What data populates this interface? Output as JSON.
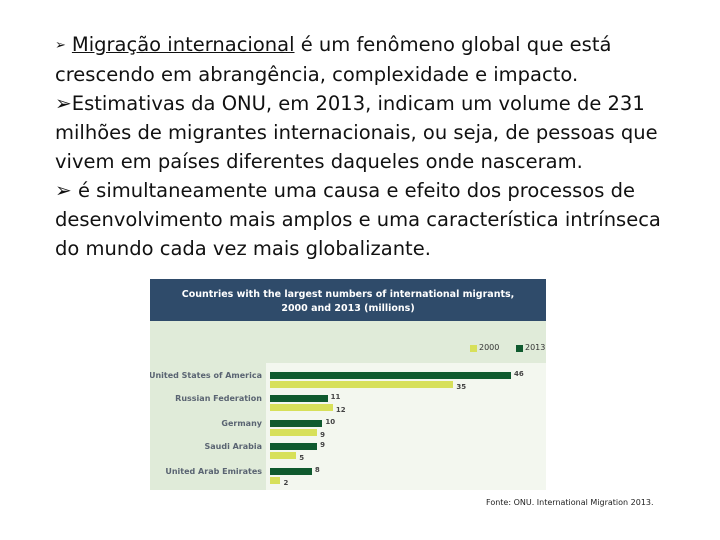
{
  "text": {
    "p1_underlined": "Migração internacional",
    "p1_rest": " é um fenômeno global que está crescendo em abrangência, complexidade e impacto.",
    "p2": "Estimativas  da ONU, em 2013,  indicam um volume de 231 milhões de migrantes internacionais, ou seja, de pessoas que vivem em países diferentes daqueles onde nasceram.",
    "p3": "é simultaneamente uma causa e efeito dos processos de desenvolvimento mais amplos e uma característica intrínseca do mundo cada vez mais globalizante."
  },
  "chart_data": {
    "type": "bar",
    "orientation": "horizontal",
    "title_line1": "Countries with the largest numbers of international migrants,",
    "title_line2": "2000 and 2013 (millions)",
    "categories": [
      "United States of America",
      "Russian Federation",
      "Germany",
      "Saudi Arabia",
      "United Arab Emirates"
    ],
    "series": [
      {
        "name": "2000",
        "values": [
          35,
          12,
          9,
          5,
          2
        ],
        "color": "#d7e05a"
      },
      {
        "name": "2013",
        "values": [
          46,
          11,
          10,
          9,
          8
        ],
        "color": "#0f5a2e"
      }
    ],
    "xlim": [
      0,
      50
    ],
    "legend_position": "top-right"
  },
  "source": "Fonte: ONU. International Migration 2013."
}
